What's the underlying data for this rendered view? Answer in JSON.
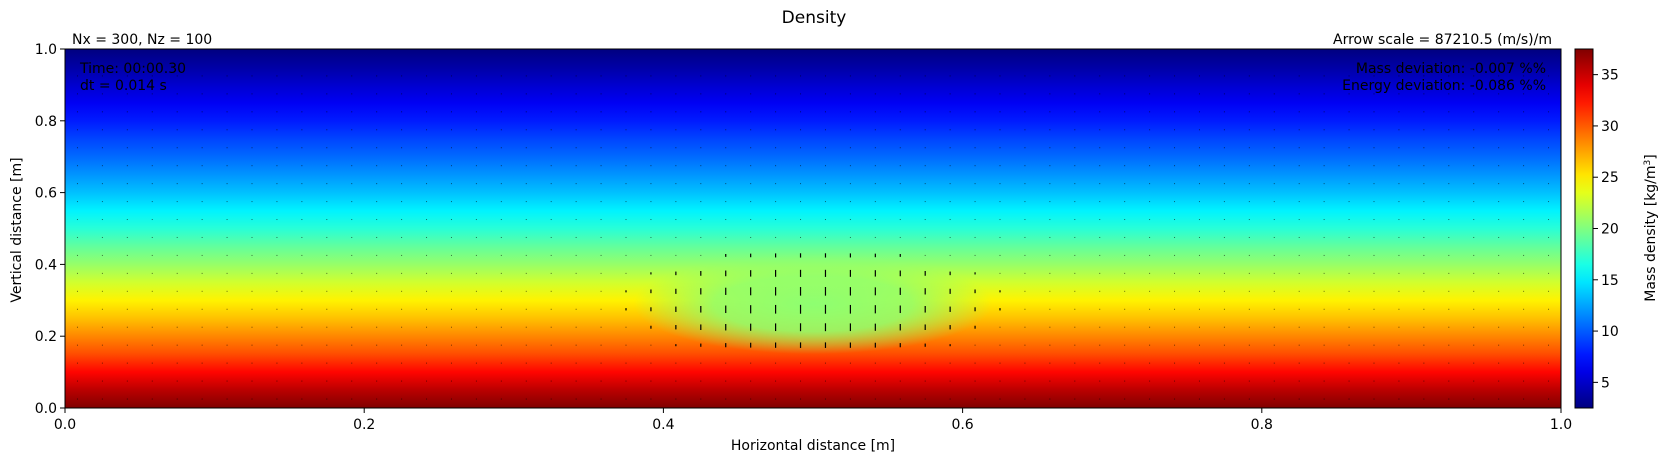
{
  "chart_data": {
    "type": "heatmap",
    "title": "Density",
    "xlabel": "Horizontal distance [m]",
    "ylabel": "Vertical distance [m]",
    "xlim": [
      0.0,
      1.0
    ],
    "ylim": [
      0.0,
      1.0
    ],
    "x_ticks": [
      0.0,
      0.2,
      0.4,
      0.6,
      0.8,
      1.0
    ],
    "x_tick_labels": [
      "0.0",
      "0.2",
      "0.4",
      "0.6",
      "0.8",
      "1.0"
    ],
    "y_ticks": [
      0.0,
      0.2,
      0.4,
      0.6,
      0.8,
      1.0
    ],
    "y_tick_labels": [
      "0.0",
      "0.2",
      "0.4",
      "0.6",
      "0.8",
      "1.0"
    ],
    "colormap": "jet",
    "colorbar": {
      "label_main": "Mass density [kg/m",
      "label_sup": "3",
      "label_end": "]",
      "vmin": 2.5,
      "vmax": 37.5,
      "ticks": [
        5,
        10,
        15,
        20,
        25,
        30,
        35
      ],
      "tick_labels": [
        "5",
        "10",
        "15",
        "20",
        "25",
        "30",
        "35"
      ]
    },
    "density_profile": {
      "z": [
        0.0,
        0.05,
        0.1,
        0.15,
        0.2,
        0.25,
        0.3,
        0.35,
        0.4,
        0.45,
        0.5,
        0.55,
        0.6,
        0.65,
        0.7,
        0.75,
        0.8,
        0.85,
        0.9,
        0.95,
        1.0
      ],
      "rho": [
        37.5,
        35.5,
        33.0,
        30.5,
        28.5,
        26.5,
        24.8,
        22.8,
        20.8,
        19.0,
        17.0,
        15.2,
        13.5,
        12.0,
        10.5,
        9.2,
        7.8,
        6.5,
        5.2,
        3.8,
        2.5
      ]
    },
    "bubble": {
      "center_x": 0.5,
      "center_z": 0.29,
      "radius_x": 0.12,
      "radius_z": 0.14,
      "density": 20.5
    },
    "annotations": {
      "top_left": "Nx = 300, Nz = 100",
      "top_right": "Arrow scale = 87210.5 (m/s)/m",
      "time": "Time: 00:00.30",
      "dt": "dt = 0.014 s",
      "mass": "Mass deviation: -0.007 %%",
      "energy": "Energy deviation: -0.086 %%"
    }
  }
}
